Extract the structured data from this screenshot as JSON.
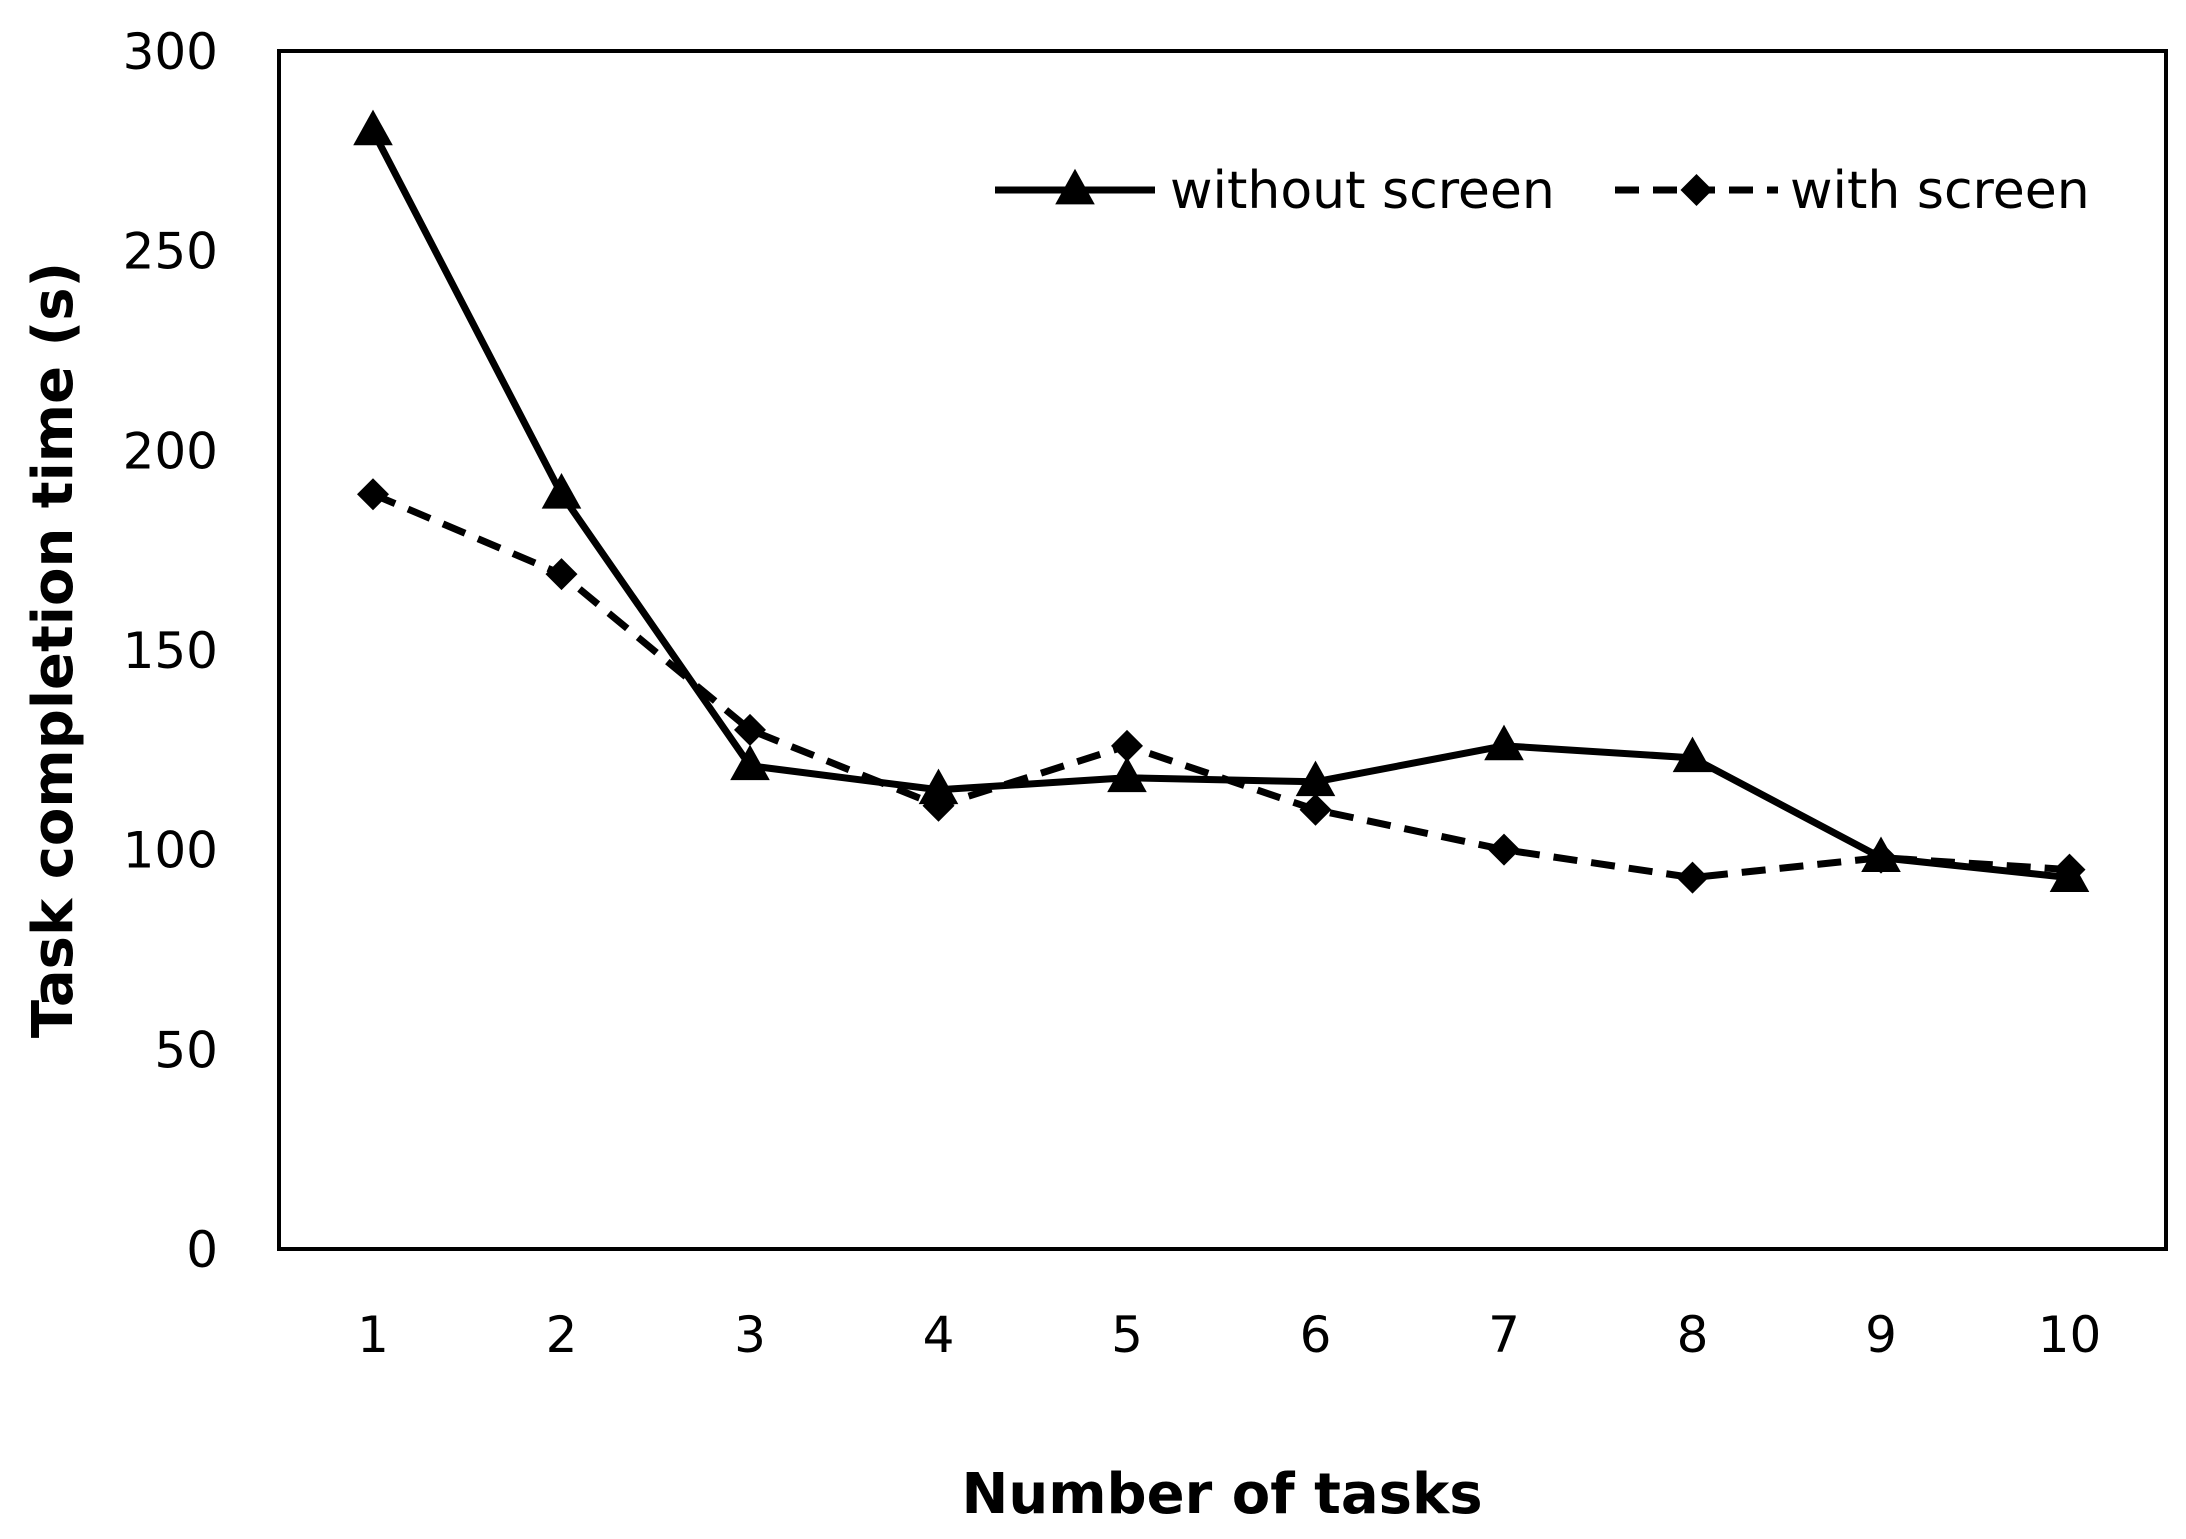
{
  "chart_data": {
    "type": "line",
    "title": "",
    "xlabel": "Number of tasks",
    "ylabel": "Task completion time (s)",
    "categories": [
      "1",
      "2",
      "3",
      "4",
      "5",
      "6",
      "7",
      "8",
      "9",
      "10"
    ],
    "x": [
      1,
      2,
      3,
      4,
      5,
      6,
      7,
      8,
      9,
      10
    ],
    "ylim": [
      0,
      300
    ],
    "yticks": [
      "0",
      "50",
      "100",
      "150",
      "200",
      "250",
      "300"
    ],
    "grid": false,
    "legend_position": "top-right",
    "series": [
      {
        "name": "without screen",
        "values": [
          280,
          189,
          121,
          115,
          118,
          117,
          126,
          123,
          98,
          93
        ],
        "line_style": "solid",
        "marker": "triangle",
        "color": "#000000"
      },
      {
        "name": "with screen",
        "values": [
          189,
          169,
          130,
          111,
          126,
          110,
          100,
          93,
          98,
          95
        ],
        "line_style": "dashed",
        "marker": "diamond",
        "color": "#000000"
      }
    ]
  }
}
